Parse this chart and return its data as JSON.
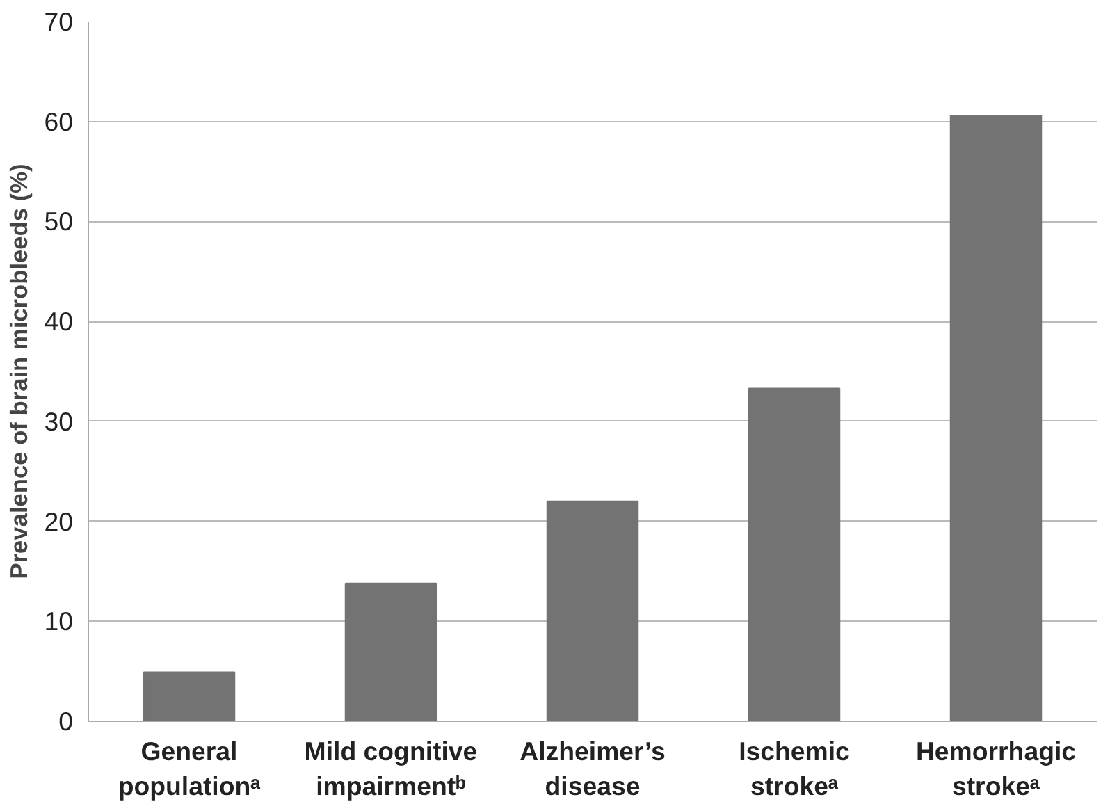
{
  "chart_data": {
    "type": "bar",
    "ylabel": "Prevalence of brain microbleeds (%)",
    "categories": [
      "General\npopulationᵃ",
      "Mild cognitive\nimpairmentᵇ",
      "Alzheimer’s\ndisease",
      "Ischemic\nstrokeᵃ",
      "Hemorrhagic\nstrokeᵃ"
    ],
    "values": [
      4.9,
      13.8,
      22.0,
      33.3,
      60.6
    ],
    "color": "#737373",
    "ylim": [
      0,
      70
    ],
    "yticks": [
      0,
      10,
      20,
      30,
      40,
      50,
      60,
      70
    ],
    "grid": "y"
  }
}
